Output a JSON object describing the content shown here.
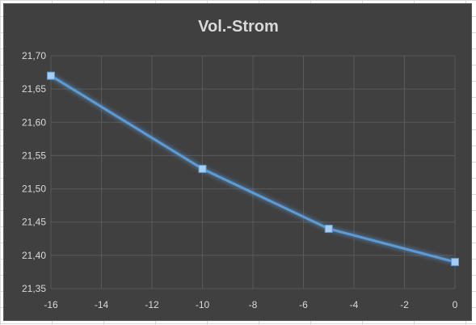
{
  "chart_data": {
    "type": "line",
    "title": "Vol.-Strom",
    "xlabel": "",
    "ylabel": "",
    "x": [
      -16,
      -10,
      -5,
      0
    ],
    "series": [
      {
        "values": [
          21.67,
          21.53,
          21.44,
          21.39
        ]
      }
    ],
    "xlim": [
      -16,
      0
    ],
    "ylim": [
      21.35,
      21.7
    ],
    "x_ticks": [
      "-16",
      "-14",
      "-12",
      "-10",
      "-8",
      "-6",
      "-4",
      "-2",
      "0"
    ],
    "y_ticks": [
      "21,35",
      "21,40",
      "21,45",
      "21,50",
      "21,55",
      "21,60",
      "21,65",
      "21,70"
    ],
    "grid": true,
    "legend": "none",
    "colors": {
      "background": "#404040",
      "line": "#5b9bd5",
      "marker": "#a9cdf0",
      "gridline": "#595959",
      "text": "#d9d9d9"
    }
  }
}
